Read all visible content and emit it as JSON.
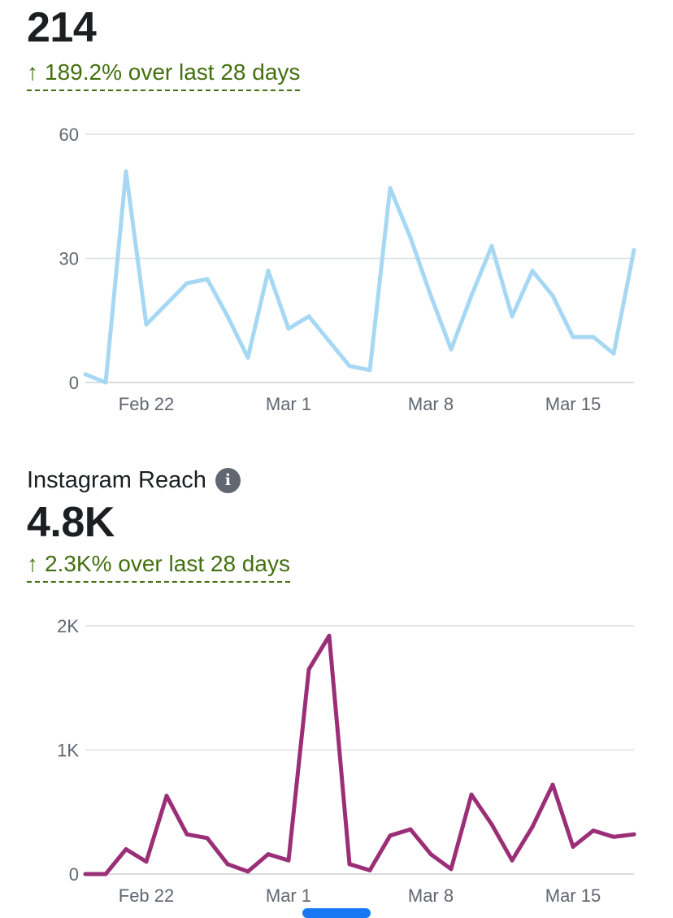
{
  "sections": [
    {
      "title": "",
      "value": "214",
      "delta_arrow": "↑",
      "delta_text": "189.2% over last 28 days",
      "color": "#a6d8f4"
    },
    {
      "title": "Instagram Reach",
      "value": "4.8K",
      "delta_arrow": "↑",
      "delta_text": "2.3K% over last 28 days",
      "color": "#9b2f77"
    }
  ],
  "icons": {
    "info": "info-icon"
  },
  "chart_data": [
    {
      "type": "line",
      "title": "",
      "xlabel": "",
      "ylabel": "",
      "ylim": [
        0,
        60
      ],
      "yticks": [
        {
          "v": 0,
          "label": "0"
        },
        {
          "v": 30,
          "label": "30"
        },
        {
          "v": 60,
          "label": "60"
        }
      ],
      "xticks": [
        {
          "i": 3,
          "label": "Feb 22"
        },
        {
          "i": 10,
          "label": "Mar 1"
        },
        {
          "i": 17,
          "label": "Mar 8"
        },
        {
          "i": 24,
          "label": "Mar 15"
        }
      ],
      "grid": true,
      "series": [
        {
          "color": "#a6d8f4",
          "values": [
            2,
            0,
            51,
            14,
            19,
            24,
            25,
            16,
            6,
            27,
            13,
            16,
            10,
            4,
            3,
            47,
            35,
            21,
            8,
            21,
            33,
            16,
            27,
            21,
            11,
            11,
            7,
            32
          ]
        }
      ]
    },
    {
      "type": "line",
      "title": "",
      "xlabel": "",
      "ylabel": "",
      "ylim": [
        0,
        2000
      ],
      "yticks": [
        {
          "v": 0,
          "label": "0"
        },
        {
          "v": 1000,
          "label": "1K"
        },
        {
          "v": 2000,
          "label": "2K"
        }
      ],
      "xticks": [
        {
          "i": 3,
          "label": "Feb 22"
        },
        {
          "i": 10,
          "label": "Mar 1"
        },
        {
          "i": 17,
          "label": "Mar 8"
        },
        {
          "i": 24,
          "label": "Mar 15"
        }
      ],
      "grid": true,
      "series": [
        {
          "color": "#9b2f77",
          "values": [
            0,
            0,
            200,
            100,
            630,
            320,
            290,
            80,
            20,
            160,
            110,
            1650,
            1920,
            80,
            30,
            310,
            360,
            160,
            40,
            640,
            400,
            110,
            380,
            720,
            220,
            350,
            300,
            320
          ]
        }
      ]
    }
  ]
}
